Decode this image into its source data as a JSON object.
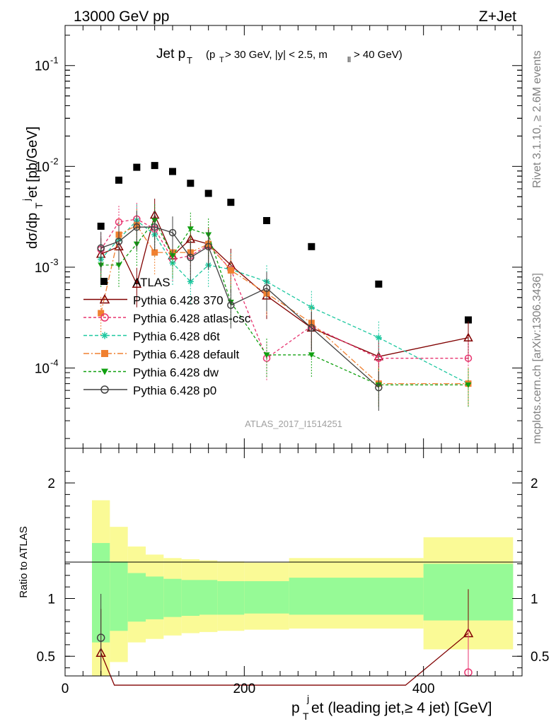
{
  "header": {
    "left": "13000 GeV pp",
    "right": "Z+Jet",
    "side_top": "Rivet 3.1.10, ≥ 2.6M events",
    "side_bottom": "mcplots.cern.ch [arXiv:1306.3436]"
  },
  "chart_data": [
    {
      "type": "scatter",
      "title_main": "Jet p",
      "title_sub": "T",
      "title_cut": "(p",
      "title_cut2": " > 30 GeV, |y| < 2.5, m",
      "title_cut3": " > 40 GeV)",
      "title_ll": "ll",
      "ylabel": "dσ/dp",
      "ylabel_sub": "T",
      "ylabel_sup": "j",
      "ylabel_tail": "et [pb/GeV]",
      "yscale": "log",
      "ylim": [
        1.6e-05,
        0.25
      ],
      "xlim": [
        0,
        510
      ],
      "y_tick_labels": [
        "10",
        "10",
        "10",
        "10"
      ],
      "y_tick_exponents": [
        "-1",
        "-2",
        "-3",
        "-4"
      ],
      "y_tick_values": [
        0.1,
        0.01,
        0.001,
        0.0001
      ],
      "watermark": "ATLAS_2017_I1514251",
      "legend_position": "lower-left",
      "series": [
        {
          "name": "ATLAS",
          "color": "#000000",
          "marker": "square",
          "dash": "none",
          "x": [
            40,
            60,
            80,
            100,
            120,
            140,
            160,
            185,
            225,
            275,
            350,
            450
          ],
          "y": [
            0.00255,
            0.0073,
            0.0098,
            0.0102,
            0.0089,
            0.0068,
            0.0054,
            0.0044,
            0.0029,
            0.0016,
            0.00068,
            0.0003
          ]
        },
        {
          "name": "Pythia 6.428 370",
          "color": "#800000",
          "marker": "triangle-open",
          "dash": "none",
          "x": [
            40,
            60,
            80,
            100,
            120,
            140,
            160,
            185,
            225,
            275,
            350,
            450
          ],
          "y": [
            0.00135,
            0.0016,
            0.00068,
            0.0033,
            0.0013,
            0.0019,
            0.0017,
            0.00105,
            0.00052,
            0.00025,
            0.00013,
            0.0002
          ]
        },
        {
          "name": "Pythia 6.428 atlas-csc",
          "color": "#e8336f",
          "marker": "circle-open",
          "dash": "4,3",
          "x": [
            40,
            60,
            80,
            100,
            120,
            140,
            160,
            185,
            225,
            275,
            350,
            450
          ],
          "y": [
            0.0015,
            0.0028,
            0.003,
            0.0024,
            0.0012,
            0.0013,
            0.00165,
            0.00095,
            0.000125,
            0.00026,
            0.000125,
            0.000125
          ]
        },
        {
          "name": "Pythia 6.428 d6t",
          "color": "#1ec8a0",
          "marker": "star",
          "dash": "5,3",
          "x": [
            40,
            60,
            80,
            100,
            120,
            140,
            160,
            185,
            225,
            275,
            350,
            450
          ],
          "y": [
            0.0012,
            0.0019,
            0.0029,
            0.0021,
            0.0011,
            0.00072,
            0.00105,
            0.00095,
            0.00072,
            0.0004,
            0.0002,
            7e-05
          ]
        },
        {
          "name": "Pythia 6.428 default",
          "color": "#f08030",
          "marker": "square",
          "dash": "8,3,2,3",
          "x": [
            40,
            60,
            80,
            100,
            120,
            140,
            160,
            185,
            225,
            275,
            350,
            450
          ],
          "y": [
            0.00035,
            0.0021,
            0.0026,
            0.0014,
            0.0014,
            0.0014,
            0.0017,
            0.00093,
            0.00055,
            0.00028,
            7e-05,
            7e-05
          ]
        },
        {
          "name": "Pythia 6.428 dw",
          "color": "#10a010",
          "marker": "triangle-down",
          "dash": "4,3",
          "x": [
            40,
            60,
            80,
            100,
            120,
            140,
            160,
            185,
            225,
            275,
            350,
            450
          ],
          "y": [
            0.00105,
            0.00105,
            0.0017,
            0.0029,
            0.0013,
            0.0024,
            0.0021,
            0.00045,
            0.000135,
            0.000135,
            6.8e-05,
            6.8e-05
          ]
        },
        {
          "name": "Pythia 6.428 p0",
          "color": "#404040",
          "marker": "circle-open",
          "dash": "none",
          "x": [
            40,
            60,
            80,
            100,
            120,
            140,
            160,
            185,
            225,
            275,
            350
          ],
          "y": [
            0.00155,
            0.0018,
            0.0025,
            0.0025,
            0.0022,
            0.00125,
            0.0016,
            0.00042,
            0.00062,
            0.00025,
            6.4e-05
          ]
        }
      ]
    },
    {
      "type": "scatter",
      "ylabel": "Ratio to ATLAS",
      "xlabel": "p",
      "xlabel_sub": "T",
      "xlabel_sup": "j",
      "xlabel_tail": "et (leading jet,≥ 4 jet) [GeV]",
      "ylim": [
        0.33,
        2.3
      ],
      "xlim": [
        0,
        510
      ],
      "x_tick_labels": [
        "0",
        "200",
        "400"
      ],
      "x_tick_values": [
        0,
        200,
        400
      ],
      "y_tick_labels": [
        "2",
        "1",
        "0.5"
      ],
      "y_tick_values": [
        2,
        1,
        0.5
      ],
      "bands": {
        "edges": [
          30,
          50,
          70,
          90,
          110,
          130,
          150,
          170,
          200,
          250,
          300,
          400,
          500
        ],
        "outer_low": [
          0.33,
          0.45,
          0.62,
          0.65,
          0.68,
          0.7,
          0.71,
          0.72,
          0.73,
          0.74,
          0.74,
          0.56
        ],
        "outer_high": [
          1.85,
          1.62,
          1.45,
          1.38,
          1.35,
          1.34,
          1.33,
          1.32,
          1.31,
          1.35,
          1.35,
          1.53
        ],
        "inner_low": [
          0.62,
          0.72,
          0.8,
          0.82,
          0.84,
          0.85,
          0.86,
          0.86,
          0.87,
          0.86,
          0.86,
          0.81
        ],
        "inner_high": [
          1.48,
          1.32,
          1.22,
          1.19,
          1.17,
          1.16,
          1.16,
          1.15,
          1.15,
          1.18,
          1.18,
          1.3
        ],
        "outer_color": "#fafa96",
        "inner_color": "#96fa96"
      },
      "ratio_points": [
        {
          "name": "Pythia 6.428 370",
          "x": [
            40,
            55,
            380,
            450
          ],
          "y": [
            0.53,
            0.25,
            0.25,
            0.7
          ]
        },
        {
          "name": "Pythia 6.428 p0",
          "x": [
            40
          ],
          "y": [
            0.66
          ]
        },
        {
          "name": "Pythia 6.428 atlas-csc",
          "x": [
            450
          ],
          "y": [
            0.36
          ]
        }
      ]
    }
  ]
}
